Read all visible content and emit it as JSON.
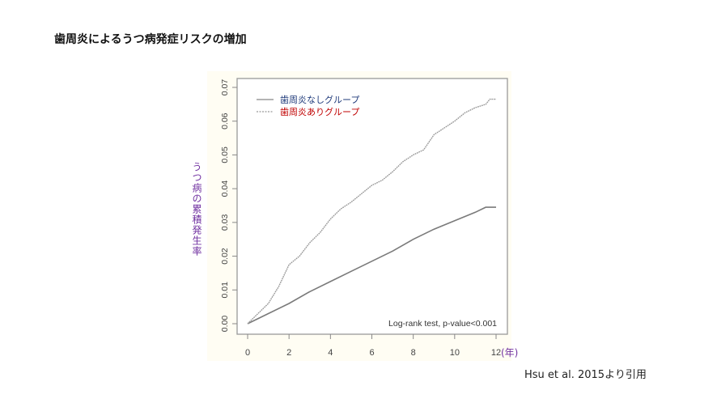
{
  "slide": {
    "title": "歯周炎によるうつ病発症リスクの増加",
    "citation": "Hsu et al. 2015より引用",
    "y_axis_label": "うつ病の累積発生率",
    "x_axis_unit": "(年)"
  },
  "colors": {
    "legend_no_perio_text": "#1f3a7a",
    "legend_perio_text": "#c00000",
    "axis_label_color": "#7030a0",
    "curve_color": "#808080",
    "chart_background": "#fffdf3"
  },
  "chart_data": {
    "type": "line",
    "title": "",
    "xlabel": "(年)",
    "ylabel": "うつ病の累積発生率",
    "xlim": [
      0,
      12
    ],
    "ylim": [
      0,
      0.07
    ],
    "x_ticks": [
      "0",
      "2",
      "4",
      "6",
      "8",
      "10",
      "12"
    ],
    "y_ticks": [
      "0.00",
      "0.01",
      "0.02",
      "0.03",
      "0.04",
      "0.05",
      "0.06",
      "0.07"
    ],
    "grid": false,
    "legend_position": "top-left",
    "annotation": "Log-rank test, p-value<0.001",
    "series": [
      {
        "name": "歯周炎なしグループ",
        "line_style": "solid",
        "x": [
          0,
          1,
          2,
          3,
          4,
          5,
          6,
          7,
          8,
          9,
          10,
          11,
          11.5,
          12
        ],
        "values": [
          0,
          0.003,
          0.006,
          0.0095,
          0.0125,
          0.0155,
          0.0185,
          0.0215,
          0.025,
          0.028,
          0.0305,
          0.033,
          0.0345,
          0.0345
        ]
      },
      {
        "name": "歯周炎ありグループ",
        "line_style": "dotted",
        "x": [
          0,
          0.5,
          1,
          1.5,
          2,
          2.5,
          3,
          3.5,
          4,
          4.5,
          5,
          5.5,
          6,
          6.5,
          7,
          7.5,
          8,
          8.5,
          9,
          9.5,
          10,
          10.5,
          11,
          11.5,
          11.7,
          12
        ],
        "values": [
          0,
          0.003,
          0.006,
          0.011,
          0.0175,
          0.02,
          0.024,
          0.027,
          0.031,
          0.034,
          0.036,
          0.0385,
          0.041,
          0.0425,
          0.045,
          0.048,
          0.05,
          0.0515,
          0.056,
          0.058,
          0.06,
          0.0625,
          0.064,
          0.065,
          0.0665,
          0.0665
        ]
      }
    ]
  }
}
